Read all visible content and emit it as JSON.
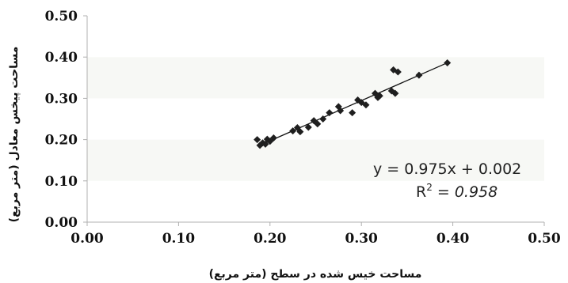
{
  "chart_data": {
    "type": "scatter",
    "xlabel": "مساحت خیس شده در سطح (متر مربع)",
    "ylabel": "مساحت پیخس معادل (متر مربع)",
    "xlim": [
      0,
      0.5
    ],
    "ylim": [
      0,
      0.5
    ],
    "x_ticks": [
      "0.00",
      "0.10",
      "0.20",
      "0.30",
      "0.40",
      "0.50"
    ],
    "y_ticks": [
      "0.00",
      "0.10",
      "0.20",
      "0.30",
      "0.40",
      "0.50"
    ],
    "grid": "horizontal bands",
    "marker": "diamond",
    "marker_color": "#1f1f1f",
    "trendline": {
      "slope": 0.975,
      "intercept": 0.002,
      "x_range": [
        0.188,
        0.395
      ]
    },
    "equation_text": "y = 0.975x + 0.002",
    "r2_label": "R",
    "r2_superscript": "2",
    "r2_value_text": " = 0.958",
    "points": [
      {
        "x": 0.186,
        "y": 0.2
      },
      {
        "x": 0.189,
        "y": 0.186
      },
      {
        "x": 0.192,
        "y": 0.192
      },
      {
        "x": 0.195,
        "y": 0.189
      },
      {
        "x": 0.197,
        "y": 0.201
      },
      {
        "x": 0.2,
        "y": 0.196
      },
      {
        "x": 0.204,
        "y": 0.204
      },
      {
        "x": 0.225,
        "y": 0.221
      },
      {
        "x": 0.23,
        "y": 0.229
      },
      {
        "x": 0.233,
        "y": 0.219
      },
      {
        "x": 0.242,
        "y": 0.23
      },
      {
        "x": 0.248,
        "y": 0.246
      },
      {
        "x": 0.252,
        "y": 0.238
      },
      {
        "x": 0.258,
        "y": 0.25
      },
      {
        "x": 0.265,
        "y": 0.265
      },
      {
        "x": 0.275,
        "y": 0.28
      },
      {
        "x": 0.277,
        "y": 0.27
      },
      {
        "x": 0.29,
        "y": 0.265
      },
      {
        "x": 0.296,
        "y": 0.296
      },
      {
        "x": 0.3,
        "y": 0.29
      },
      {
        "x": 0.305,
        "y": 0.284
      },
      {
        "x": 0.315,
        "y": 0.312
      },
      {
        "x": 0.318,
        "y": 0.302
      },
      {
        "x": 0.32,
        "y": 0.306
      },
      {
        "x": 0.333,
        "y": 0.318
      },
      {
        "x": 0.337,
        "y": 0.312
      },
      {
        "x": 0.335,
        "y": 0.369
      },
      {
        "x": 0.34,
        "y": 0.364
      },
      {
        "x": 0.363,
        "y": 0.356
      },
      {
        "x": 0.394,
        "y": 0.386
      }
    ]
  }
}
